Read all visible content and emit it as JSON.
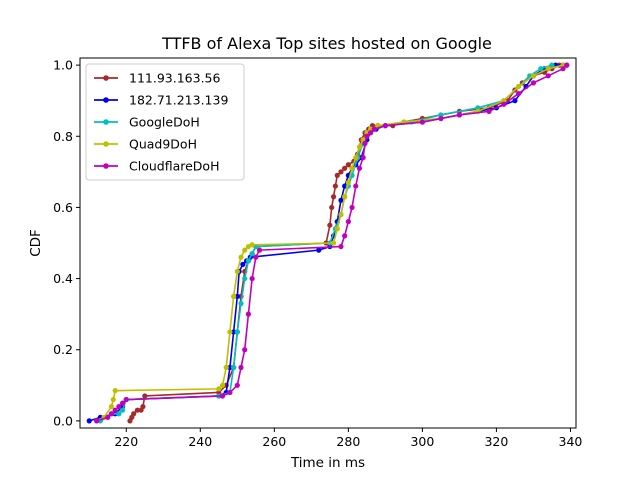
{
  "chart_data": {
    "type": "line",
    "title": "TTFB of Alexa Top sites hosted on Google",
    "xlabel": "Time in ms",
    "ylabel": "CDF",
    "xlim": [
      207.5,
      341.5
    ],
    "ylim": [
      -0.02,
      1.02
    ],
    "xticks": [
      220,
      240,
      260,
      280,
      300,
      320,
      340
    ],
    "yticks": [
      0.0,
      0.2,
      0.4,
      0.6,
      0.8,
      1.0
    ],
    "xtick_labels": [
      "220",
      "240",
      "260",
      "280",
      "300",
      "320",
      "340"
    ],
    "ytick_labels": [
      "0.0",
      "0.2",
      "0.4",
      "0.6",
      "0.8",
      "1.0"
    ],
    "grid": false,
    "legend_position": "top-left",
    "series": [
      {
        "name": "111.93.163.56",
        "color": "#a52a2a",
        "x": [
          221.0,
          221.5,
          222.0,
          223.0,
          224.0,
          224.5,
          225.0,
          245.0,
          247.0,
          249.0,
          250.0,
          251.0,
          252.0,
          253.0,
          254.0,
          255.0,
          274.0,
          275.0,
          275.5,
          276.0,
          276.5,
          277.0,
          278.0,
          279.0,
          280.0,
          281.5,
          282.5,
          283.5,
          284.5,
          285.5,
          286.5,
          288.0,
          292.0,
          295.0,
          300.0,
          305.0,
          310.0,
          318.0,
          323.0,
          325.0,
          327.0,
          330.0,
          333.0,
          335.0,
          337.0,
          339.0
        ],
        "y": [
          0.0,
          0.01,
          0.02,
          0.03,
          0.03,
          0.04,
          0.07,
          0.08,
          0.1,
          0.15,
          0.25,
          0.35,
          0.42,
          0.45,
          0.47,
          0.49,
          0.5,
          0.55,
          0.6,
          0.63,
          0.66,
          0.69,
          0.7,
          0.71,
          0.72,
          0.73,
          0.75,
          0.79,
          0.81,
          0.82,
          0.83,
          0.83,
          0.83,
          0.84,
          0.85,
          0.86,
          0.87,
          0.88,
          0.9,
          0.93,
          0.95,
          0.97,
          0.98,
          0.99,
          1.0,
          1.0
        ]
      },
      {
        "name": "182.71.213.139",
        "color": "#0000ee",
        "x": [
          210.0,
          213.0,
          217.0,
          219.0,
          220.0,
          245.0,
          247.0,
          248.0,
          249.0,
          250.0,
          250.5,
          251.5,
          252.5,
          253.5,
          272.0,
          275.0,
          276.0,
          277.0,
          278.0,
          279.0,
          280.0,
          281.0,
          282.0,
          283.5,
          285.0,
          286.0,
          287.5,
          290.0,
          300.0,
          310.0,
          320.0,
          325.0,
          328.0,
          330.0,
          333.0,
          336.0,
          338.0
        ],
        "y": [
          0.0,
          0.01,
          0.02,
          0.04,
          0.06,
          0.07,
          0.08,
          0.15,
          0.25,
          0.35,
          0.42,
          0.44,
          0.45,
          0.46,
          0.48,
          0.49,
          0.52,
          0.56,
          0.62,
          0.66,
          0.69,
          0.71,
          0.72,
          0.74,
          0.79,
          0.81,
          0.82,
          0.83,
          0.84,
          0.86,
          0.88,
          0.9,
          0.94,
          0.97,
          0.99,
          1.0,
          1.0
        ]
      },
      {
        "name": "GoogleDoH",
        "color": "#00bfbf",
        "x": [
          213.0,
          215.0,
          216.0,
          218.0,
          219.0,
          220.0,
          245.0,
          248.0,
          249.0,
          250.0,
          251.0,
          252.0,
          253.0,
          254.0,
          255.0,
          275.0,
          276.5,
          278.0,
          279.0,
          280.0,
          281.0,
          282.5,
          284.0,
          285.0,
          286.0,
          287.0,
          290.0,
          297.0,
          305.0,
          315.0,
          322.0,
          326.0,
          329.0,
          332.0,
          335.0
        ],
        "y": [
          0.0,
          0.01,
          0.02,
          0.02,
          0.03,
          0.06,
          0.07,
          0.08,
          0.15,
          0.25,
          0.33,
          0.4,
          0.45,
          0.47,
          0.49,
          0.5,
          0.54,
          0.58,
          0.63,
          0.66,
          0.69,
          0.74,
          0.78,
          0.8,
          0.81,
          0.82,
          0.83,
          0.84,
          0.86,
          0.88,
          0.9,
          0.94,
          0.97,
          0.99,
          1.0
        ]
      },
      {
        "name": "Quad9DoH",
        "color": "#bfbf00",
        "x": [
          212.0,
          214.0,
          216.0,
          216.5,
          217.0,
          245.0,
          246.0,
          247.0,
          248.0,
          249.0,
          250.0,
          251.0,
          252.0,
          253.0,
          254.0,
          276.0,
          277.0,
          278.0,
          279.0,
          280.0,
          281.0,
          282.0,
          283.0,
          284.0,
          285.0,
          286.0,
          288.0,
          295.0,
          305.0,
          315.0,
          322.0,
          326.0,
          330.0,
          334.0,
          338.0
        ],
        "y": [
          0.0,
          0.01,
          0.04,
          0.06,
          0.085,
          0.09,
          0.1,
          0.15,
          0.25,
          0.35,
          0.42,
          0.46,
          0.48,
          0.49,
          0.495,
          0.5,
          0.54,
          0.58,
          0.63,
          0.67,
          0.71,
          0.74,
          0.77,
          0.79,
          0.81,
          0.82,
          0.83,
          0.84,
          0.85,
          0.87,
          0.9,
          0.94,
          0.97,
          0.99,
          1.0
        ]
      },
      {
        "name": "CloudflareDoH",
        "color": "#bf00bf",
        "x": [
          212.0,
          215.0,
          216.0,
          217.0,
          218.0,
          219.0,
          220.0,
          246.0,
          248.0,
          250.0,
          251.0,
          252.0,
          253.0,
          254.0,
          255.0,
          256.0,
          278.0,
          279.0,
          280.0,
          281.0,
          282.0,
          283.0,
          284.0,
          284.5,
          285.0,
          286.0,
          287.0,
          290.0,
          300.0,
          305.0,
          310.0,
          318.0,
          322.0,
          326.0,
          330.0,
          334.0,
          338.0,
          339.0
        ],
        "y": [
          0.0,
          0.01,
          0.02,
          0.03,
          0.04,
          0.05,
          0.06,
          0.07,
          0.08,
          0.1,
          0.15,
          0.2,
          0.3,
          0.4,
          0.46,
          0.48,
          0.49,
          0.52,
          0.56,
          0.6,
          0.66,
          0.71,
          0.74,
          0.78,
          0.8,
          0.81,
          0.82,
          0.83,
          0.84,
          0.85,
          0.86,
          0.87,
          0.89,
          0.92,
          0.95,
          0.97,
          0.99,
          1.0
        ]
      }
    ]
  }
}
